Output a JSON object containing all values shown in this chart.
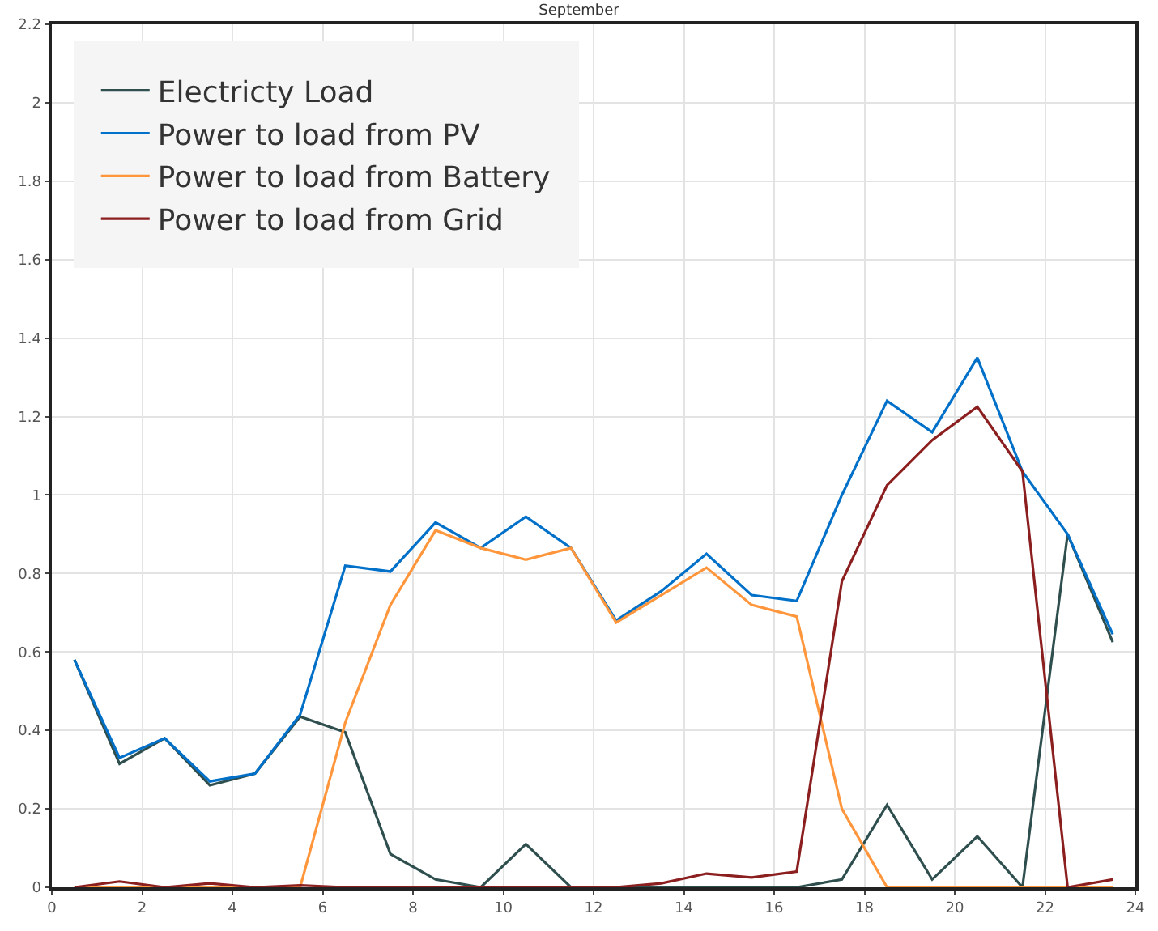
{
  "chart_data": {
    "type": "line",
    "title": "September",
    "x": [
      0.5,
      1.5,
      2.5,
      3.5,
      4.5,
      5.5,
      6.5,
      7.5,
      8.5,
      9.5,
      10.5,
      11.5,
      12.5,
      13.5,
      14.5,
      15.5,
      16.5,
      17.5,
      18.5,
      19.5,
      20.5,
      21.5,
      22.5,
      23.5
    ],
    "series": [
      {
        "name": "Electricty Load",
        "color": "#2f4f4f",
        "values": [
          0.58,
          0.315,
          0.38,
          0.26,
          0.29,
          0.435,
          0.395,
          0.085,
          0.02,
          0,
          0.11,
          0,
          0,
          0,
          0,
          0,
          0,
          0.02,
          0.21,
          0.02,
          0.13,
          0,
          0.9,
          0.625
        ]
      },
      {
        "name": "Power to load from PV",
        "color": "#0070c8",
        "values": [
          0.58,
          0.33,
          0.38,
          0.27,
          0.29,
          0.44,
          0.82,
          0.805,
          0.93,
          0.865,
          0.945,
          0.865,
          0.68,
          0.755,
          0.85,
          0.745,
          0.73,
          1.0,
          1.24,
          1.16,
          1.35,
          1.06,
          0.9,
          0.645
        ]
      },
      {
        "name": "Power to load from Battery",
        "color": "#ff963c",
        "values": [
          0,
          0,
          0,
          0,
          0,
          0,
          0.42,
          0.72,
          0.91,
          0.865,
          0.835,
          0.865,
          0.675,
          0.745,
          0.815,
          0.72,
          0.69,
          0.2,
          0,
          0,
          0,
          0,
          0,
          0
        ]
      },
      {
        "name": "Power to load from Grid",
        "color": "#8b1e1e",
        "values": [
          0,
          0.015,
          0,
          0.01,
          0,
          0.005,
          0,
          0,
          0,
          0,
          0,
          0,
          0,
          0.01,
          0.035,
          0.025,
          0.04,
          0.78,
          1.025,
          1.14,
          1.225,
          1.06,
          0,
          0.02
        ]
      }
    ],
    "xlim": [
      0,
      24
    ],
    "xticks": [
      0,
      2,
      4,
      6,
      8,
      10,
      12,
      14,
      16,
      18,
      20,
      22,
      24
    ],
    "ylim": [
      0,
      2.2
    ],
    "yticks": [
      0,
      0.2,
      0.4,
      0.6,
      0.8,
      1,
      1.2,
      1.4,
      1.6,
      1.8,
      2,
      2.2
    ],
    "grid": true,
    "legend": "top left",
    "marker": "none",
    "line_style": "solid"
  }
}
